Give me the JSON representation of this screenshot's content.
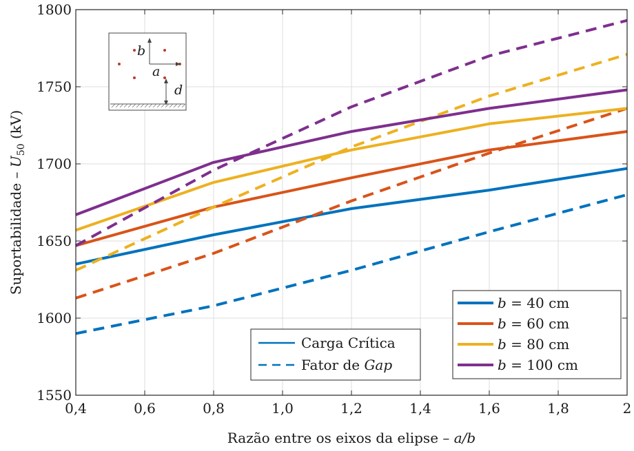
{
  "chart_data": {
    "type": "line",
    "xlabel": "Razão entre os eixos da elipse – a/b",
    "ylabel": "Suportabilidade – U50 (kV)",
    "xlim": [
      0.4,
      2.0
    ],
    "ylim": [
      1550,
      1800
    ],
    "xticks": [
      "0,4",
      "0,6",
      "0,8",
      "1,0",
      "1,2",
      "1,4",
      "1,6",
      "1,8",
      "2"
    ],
    "xtick_values": [
      0.4,
      0.6,
      0.8,
      1.0,
      1.2,
      1.4,
      1.6,
      1.8,
      2.0
    ],
    "yticks": [
      "1550",
      "1600",
      "1650",
      "1700",
      "1750",
      "1800"
    ],
    "ytick_values": [
      1550,
      1600,
      1650,
      1700,
      1750,
      1800
    ],
    "grid": true,
    "x": [
      0.4,
      0.8,
      1.2,
      1.6,
      2.0
    ],
    "series": [
      {
        "name": "b = 40 cm",
        "color": "#0072BD",
        "method": "Carga Crítica",
        "values": [
          1635,
          1654,
          1671,
          1683,
          1697
        ]
      },
      {
        "name": "b = 40 cm",
        "color": "#0072BD",
        "method": "Fator de Gap",
        "values": [
          1590,
          1608,
          1631,
          1656,
          1680
        ]
      },
      {
        "name": "b = 60 cm",
        "color": "#D95319",
        "method": "Carga Crítica",
        "values": [
          1647,
          1672,
          1691,
          1709,
          1721
        ]
      },
      {
        "name": "b = 60 cm",
        "color": "#D95319",
        "method": "Fator de Gap",
        "values": [
          1613,
          1642,
          1676,
          1707,
          1736
        ]
      },
      {
        "name": "b = 80 cm",
        "color": "#EDB120",
        "method": "Carga Crítica",
        "values": [
          1657,
          1688,
          1709,
          1726,
          1736
        ]
      },
      {
        "name": "b = 80 cm",
        "color": "#EDB120",
        "method": "Fator de Gap",
        "values": [
          1631,
          1672,
          1711,
          1744,
          1771
        ]
      },
      {
        "name": "b = 100 cm",
        "color": "#7E2F8E",
        "method": "Carga Crítica",
        "values": [
          1667,
          1701,
          1721,
          1736,
          1748
        ]
      },
      {
        "name": "b = 100 cm",
        "color": "#7E2F8E",
        "method": "Fator de Gap",
        "values": [
          1647,
          1696,
          1737,
          1770,
          1793
        ]
      }
    ],
    "legend_b": {
      "position": "bottom-right",
      "entries": [
        {
          "prefix": "b",
          "text": " = 40 cm",
          "color": "#0072BD"
        },
        {
          "prefix": "b",
          "text": " = 60 cm",
          "color": "#D95319"
        },
        {
          "prefix": "b",
          "text": " = 80 cm",
          "color": "#EDB120"
        },
        {
          "prefix": "b",
          "text": " = 100 cm",
          "color": "#7E2F8E"
        }
      ]
    },
    "legend_method": {
      "position": "bottom-center",
      "entries": [
        {
          "text": "Carga Crítica",
          "style": "solid",
          "color": "#0072BD"
        },
        {
          "text_plain": "Fator de ",
          "text_italic": "Gap",
          "style": "dashed",
          "color": "#0072BD"
        }
      ]
    },
    "inset": {
      "labels": {
        "b": "b",
        "a": "a",
        "d": "d"
      }
    }
  }
}
